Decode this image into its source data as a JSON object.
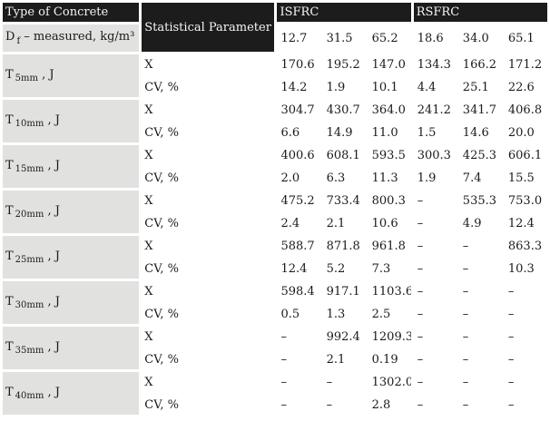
{
  "colors": {
    "header_dark": "#1c1c1c",
    "label_gray": "#e1e1e0",
    "cell_white": "#ffffff"
  },
  "header": {
    "type_of_concrete": "Type of Concrete",
    "df_prefix": "D",
    "df_sub": "f",
    "df_rest": " – measured, kg/m³",
    "stat_param": "Statistical Parameter",
    "isfrc_label": "ISFRC",
    "rsfrc_label": "RSFRC",
    "dosages": [
      "12.7",
      "31.5",
      "65.2",
      "18.6",
      "34.0",
      "65.1"
    ]
  },
  "stat_labels": {
    "mean": "X",
    "cv": "CV, %"
  },
  "groups": [
    {
      "prefix": "T",
      "sub": "5mm",
      "suffix": " , J",
      "x": [
        "170.6",
        "195.2",
        "147.0",
        "134.3",
        "166.2",
        "171.2"
      ],
      "cv": [
        "14.2",
        "1.9",
        "10.1",
        "4.4",
        "25.1",
        "22.6"
      ]
    },
    {
      "prefix": "T",
      "sub": "10mm",
      "suffix": " , J",
      "x": [
        "304.7",
        "430.7",
        "364.0",
        "241.2",
        "341.7",
        "406.8"
      ],
      "cv": [
        "6.6",
        "14.9",
        "11.0",
        "1.5",
        "14.6",
        "20.0"
      ]
    },
    {
      "prefix": "T",
      "sub": "15mm",
      "suffix": " , J",
      "x": [
        "400.6",
        "608.1",
        "593.5",
        "300.3",
        "425.3",
        "606.1"
      ],
      "cv": [
        "2.0",
        "6.3",
        "11.3",
        "1.9",
        "7.4",
        "15.5"
      ]
    },
    {
      "prefix": "T",
      "sub": "20mm",
      "suffix": " , J",
      "x": [
        "475.2",
        "733.4",
        "800.3",
        "–",
        "535.3",
        "753.0"
      ],
      "cv": [
        "2.4",
        "2.1",
        "10.6",
        "–",
        "4.9",
        "12.4"
      ]
    },
    {
      "prefix": "T",
      "sub": "25mm",
      "suffix": " , J",
      "x": [
        "588.7",
        "871.8",
        "961.8",
        "–",
        "–",
        "863.3"
      ],
      "cv": [
        "12.4",
        "5.2",
        "7.3",
        "–",
        "–",
        "10.3"
      ]
    },
    {
      "prefix": "T",
      "sub": "30mm",
      "suffix": " , J",
      "x": [
        "598.4",
        "917.1",
        "1103.6",
        "–",
        "–",
        "–"
      ],
      "cv": [
        "0.5",
        "1.3",
        "2.5",
        "–",
        "–",
        "–"
      ]
    },
    {
      "prefix": "T",
      "sub": "35mm",
      "suffix": " , J",
      "x": [
        "–",
        "992.4",
        "1209.3",
        "–",
        "–",
        "–"
      ],
      "cv": [
        "–",
        "2.1",
        "0.19",
        "–",
        "–",
        "–"
      ]
    },
    {
      "prefix": "T",
      "sub": "40mm",
      "suffix": " , J",
      "x": [
        "–",
        "–",
        "1302.0",
        "–",
        "–",
        "–"
      ],
      "cv": [
        "–",
        "–",
        "2.8",
        "–",
        "–",
        "–"
      ]
    }
  ],
  "chart_data": {
    "type": "table",
    "title": "",
    "column_groups": [
      {
        "name": "ISFRC",
        "dosages_kg_m3": [
          12.7,
          31.5,
          65.2
        ]
      },
      {
        "name": "RSFRC",
        "dosages_kg_m3": [
          18.6,
          34.0,
          65.1
        ]
      }
    ],
    "row_groups": [
      "T5mm, J",
      "T10mm, J",
      "T15mm, J",
      "T20mm, J",
      "T25mm, J",
      "T30mm, J",
      "T35mm, J",
      "T40mm, J"
    ],
    "statistics_per_row_group": [
      "X",
      "CV, %"
    ],
    "values_X": [
      [
        170.6,
        195.2,
        147.0,
        134.3,
        166.2,
        171.2
      ],
      [
        304.7,
        430.7,
        364.0,
        241.2,
        341.7,
        406.8
      ],
      [
        400.6,
        608.1,
        593.5,
        300.3,
        425.3,
        606.1
      ],
      [
        475.2,
        733.4,
        800.3,
        null,
        535.3,
        753.0
      ],
      [
        588.7,
        871.8,
        961.8,
        null,
        null,
        863.3
      ],
      [
        598.4,
        917.1,
        1103.6,
        null,
        null,
        null
      ],
      [
        null,
        992.4,
        1209.3,
        null,
        null,
        null
      ],
      [
        null,
        null,
        1302.0,
        null,
        null,
        null
      ]
    ],
    "values_CV_percent": [
      [
        14.2,
        1.9,
        10.1,
        4.4,
        25.1,
        22.6
      ],
      [
        6.6,
        14.9,
        11.0,
        1.5,
        14.6,
        20.0
      ],
      [
        2.0,
        6.3,
        11.3,
        1.9,
        7.4,
        15.5
      ],
      [
        2.4,
        2.1,
        10.6,
        null,
        4.9,
        12.4
      ],
      [
        12.4,
        5.2,
        7.3,
        null,
        null,
        10.3
      ],
      [
        0.5,
        1.3,
        2.5,
        null,
        null,
        null
      ],
      [
        null,
        2.1,
        0.19,
        null,
        null,
        null
      ],
      [
        null,
        null,
        2.8,
        null,
        null,
        null
      ]
    ]
  }
}
